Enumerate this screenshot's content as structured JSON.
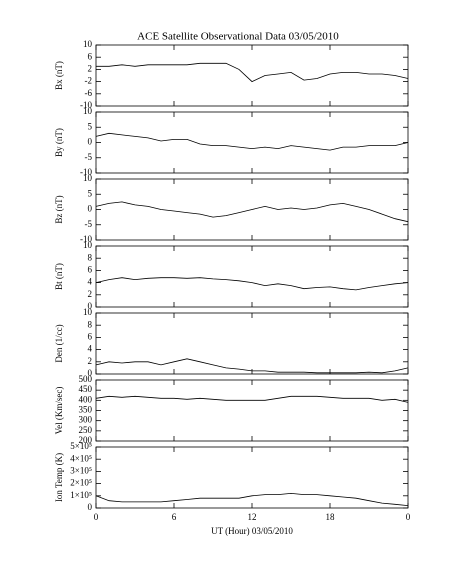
{
  "chart_data": {
    "type": "line",
    "title": "ACE Satellite Observational Data   03/05/2010",
    "xlabel": "UT (Hour)   03/05/2010",
    "x": [
      0,
      1,
      2,
      3,
      4,
      5,
      6,
      7,
      8,
      9,
      10,
      11,
      12,
      13,
      14,
      15,
      16,
      17,
      18,
      19,
      20,
      21,
      22,
      23,
      24
    ],
    "xlim": [
      0,
      24
    ],
    "xticks": [
      0,
      6,
      12,
      18,
      {
        "value": 24,
        "label": "0"
      }
    ],
    "color": "#000000",
    "panels": [
      {
        "ylabel": "Bx (nT)",
        "ylim": [
          -10,
          10
        ],
        "yticks": [
          -10,
          -6,
          -2,
          2,
          6,
          10
        ],
        "values": [
          3,
          3,
          3.5,
          3,
          3.5,
          3.5,
          3.5,
          3.5,
          4,
          4,
          4,
          2,
          -2,
          0,
          0.5,
          1,
          -1.5,
          -1,
          0.5,
          1,
          1,
          0.5,
          0.5,
          0,
          -1
        ]
      },
      {
        "ylabel": "By (nT)",
        "ylim": [
          -10,
          10
        ],
        "yticks": [
          -10,
          -5,
          0,
          5,
          10
        ],
        "values": [
          2,
          3,
          2.5,
          2,
          1.5,
          0.5,
          1,
          1,
          -0.5,
          -1,
          -1,
          -1.5,
          -2,
          -1.5,
          -2,
          -1,
          -1.5,
          -2,
          -2.5,
          -1.5,
          -1.5,
          -1,
          -1,
          -1,
          0
        ]
      },
      {
        "ylabel": "Bz (nT)",
        "ylim": [
          -10,
          10
        ],
        "yticks": [
          -10,
          -5,
          0,
          5,
          10
        ],
        "values": [
          1,
          2,
          2.5,
          1.5,
          1,
          0,
          -0.5,
          -1,
          -1.5,
          -2.5,
          -2,
          -1,
          0,
          1,
          0,
          0.5,
          0,
          0.5,
          1.5,
          2,
          1,
          0,
          -1.5,
          -3,
          -4
        ]
      },
      {
        "ylabel": "Bt (nT)",
        "ylim": [
          0,
          10
        ],
        "yticks": [
          0,
          2,
          4,
          6,
          8,
          10
        ],
        "values": [
          4,
          4.5,
          4.8,
          4.5,
          4.7,
          4.8,
          4.8,
          4.7,
          4.8,
          4.6,
          4.5,
          4.3,
          4,
          3.5,
          3.8,
          3.5,
          3,
          3.2,
          3.3,
          3,
          2.8,
          3.2,
          3.5,
          3.8,
          4
        ]
      },
      {
        "ylabel": "Den (1/cc)",
        "ylim": [
          0,
          10
        ],
        "yticks": [
          0,
          2,
          4,
          6,
          8,
          10
        ],
        "values": [
          1.5,
          2,
          1.8,
          2,
          2,
          1.5,
          2,
          2.5,
          2,
          1.5,
          1,
          0.8,
          0.5,
          0.5,
          0.3,
          0.3,
          0.3,
          0.2,
          0.2,
          0.2,
          0.2,
          0.3,
          0.2,
          0.5,
          1
        ]
      },
      {
        "ylabel": "Vel (Km/sec)",
        "ylim": [
          200,
          500
        ],
        "yticks": [
          200,
          250,
          300,
          350,
          400,
          450,
          500
        ],
        "values": [
          410,
          420,
          415,
          420,
          415,
          410,
          410,
          405,
          410,
          405,
          400,
          400,
          400,
          400,
          410,
          420,
          420,
          420,
          415,
          410,
          410,
          410,
          400,
          405,
          390
        ]
      },
      {
        "ylabel": "Ion Temp (K)",
        "ylim": [
          0,
          500000
        ],
        "yticks": [
          0,
          {
            "value": 100000,
            "label": "1×10⁵"
          },
          {
            "value": 200000,
            "label": "2×10⁵"
          },
          {
            "value": 300000,
            "label": "3×10⁵"
          },
          {
            "value": 400000,
            "label": "4×10⁵"
          },
          {
            "value": 500000,
            "label": "5×10⁵"
          }
        ],
        "values": [
          100000,
          60000,
          50000,
          50000,
          50000,
          50000,
          60000,
          70000,
          80000,
          80000,
          80000,
          80000,
          100000,
          110000,
          110000,
          120000,
          110000,
          110000,
          100000,
          90000,
          80000,
          60000,
          40000,
          30000,
          20000
        ]
      }
    ]
  }
}
